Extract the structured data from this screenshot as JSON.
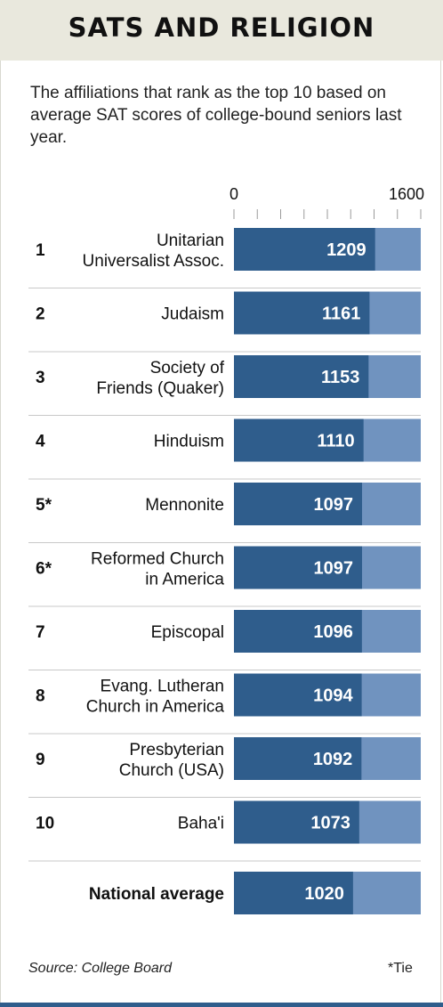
{
  "title": "SATS AND RELIGION",
  "subtitle": "The affiliations that rank as the top 10 based on average SAT scores of college-bound seniors last year.",
  "source": "Source: College Board",
  "footnote": "*Tie",
  "colors": {
    "bar": "#2f5d8c",
    "track": "#7093bf",
    "header_bg": "#e9e8dd"
  },
  "chart_data": {
    "type": "bar",
    "orientation": "horizontal",
    "title": "SATS AND RELIGION",
    "xlim": [
      0,
      1600
    ],
    "axis_tick_labels": [
      "0",
      "1600"
    ],
    "rows": [
      {
        "rank": "1",
        "label": [
          "Unitarian",
          "Universalist Assoc."
        ],
        "value": 1209,
        "value_label": "1209"
      },
      {
        "rank": "2",
        "label": [
          "Judaism"
        ],
        "value": 1161,
        "value_label": "1161"
      },
      {
        "rank": "3",
        "label": [
          "Society of",
          "Friends (Quaker)"
        ],
        "value": 1153,
        "value_label": "1153"
      },
      {
        "rank": "4",
        "label": [
          "Hinduism"
        ],
        "value": 1110,
        "value_label": "1110"
      },
      {
        "rank": "5*",
        "label": [
          "Mennonite"
        ],
        "value": 1097,
        "value_label": "1097"
      },
      {
        "rank": "6*",
        "label": [
          "Reformed Church",
          "in America"
        ],
        "value": 1097,
        "value_label": "1097"
      },
      {
        "rank": "7",
        "label": [
          "Episcopal"
        ],
        "value": 1096,
        "value_label": "1096"
      },
      {
        "rank": "8",
        "label": [
          "Evang. Lutheran",
          "Church in America"
        ],
        "value": 1094,
        "value_label": "1094"
      },
      {
        "rank": "9",
        "label": [
          "Presbyterian",
          "Church (USA)"
        ],
        "value": 1092,
        "value_label": "1092"
      },
      {
        "rank": "10",
        "label": [
          "Baha'i"
        ],
        "value": 1073,
        "value_label": "1073"
      }
    ],
    "national_average": {
      "label": "National average",
      "value": 1020,
      "value_label": "1020"
    }
  }
}
